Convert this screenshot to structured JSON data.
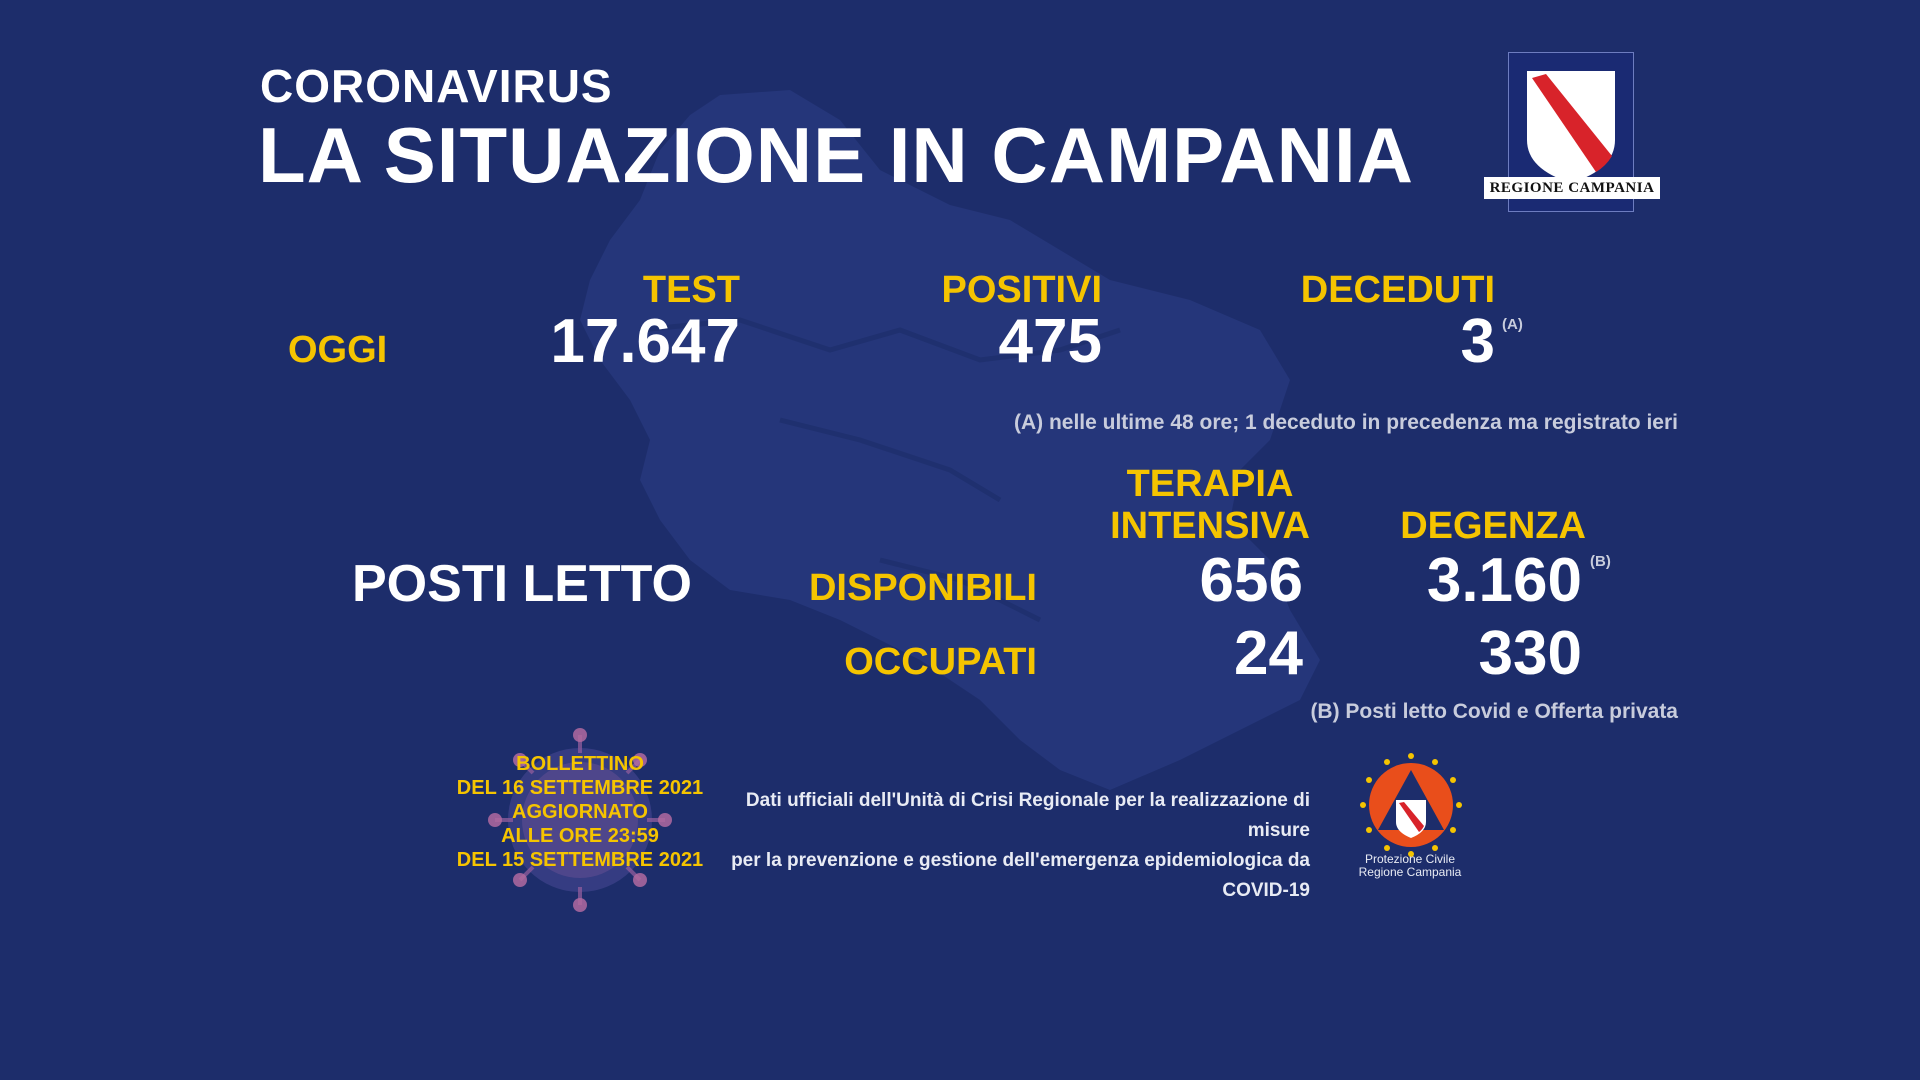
{
  "header": {
    "title_small": "CORONAVIRUS",
    "title_big": "LA SITUAZIONE IN CAMPANIA",
    "logo_label": "REGIONE CAMPANIA"
  },
  "today": {
    "row_label": "OGGI",
    "test": {
      "label": "TEST",
      "value": "17.647"
    },
    "positivi": {
      "label": "POSITIVI",
      "value": "475"
    },
    "deceduti": {
      "label": "DECEDUTI",
      "value": "3",
      "mark": "(A)"
    },
    "note_a": "(A) nelle ultime 48 ore; 1 deceduto in precedenza ma registrato ieri"
  },
  "beds": {
    "title": "POSTI LETTO",
    "col_ti_line1": "TERAPIA",
    "col_ti_line2": "INTENSIVA",
    "col_degenza": "DEGENZA",
    "row_disponibili": "DISPONIBILI",
    "row_occupati": "OCCUPATI",
    "ti_disponibili": "656",
    "ti_occupati": "24",
    "degenza_disponibili": "3.160",
    "degenza_mark": "(B)",
    "degenza_occupati": "330",
    "note_b": "(B) Posti letto Covid e Offerta privata"
  },
  "bulletin": {
    "line1": "BOLLETTINO",
    "line2": "DEL 16  SETTEMBRE 2021",
    "line3": "AGGIORNATO",
    "line4": "ALLE ORE 23:59",
    "line5": "DEL 15 SETTEMBRE 2021"
  },
  "footer": {
    "line1": "Dati ufficiali dell'Unità di Crisi Regionale per la realizzazione di misure",
    "line2": "per la prevenzione e gestione dell'emergenza epidemiologica da COVID-19"
  },
  "protezione_civile": {
    "line1": "Protezione Civile",
    "line2": "Regione Campania"
  },
  "colors": {
    "background": "#1d2d6b",
    "accent_yellow": "#f5c400",
    "text_white": "#ffffff",
    "emblem_red": "#d8232a"
  }
}
